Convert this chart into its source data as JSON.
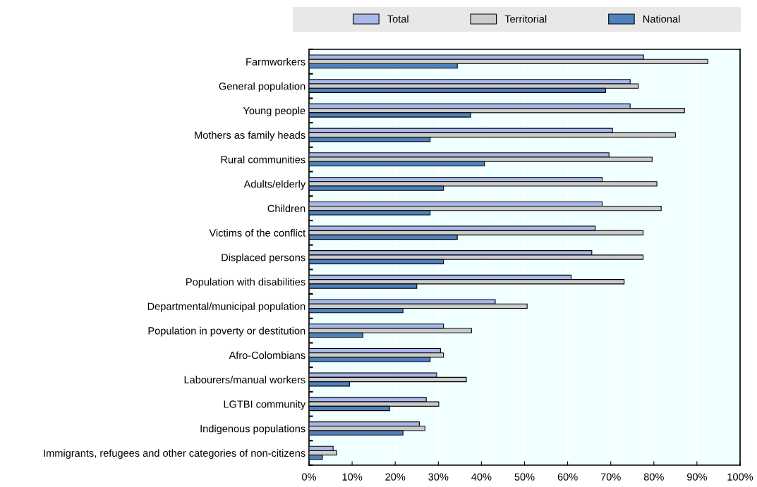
{
  "chart_data": {
    "type": "bar",
    "orientation": "horizontal",
    "categories": [
      "Farmworkers",
      "General population",
      "Young people",
      "Mothers as family heads",
      "Rural communities",
      "Adults/elderly",
      "Children",
      "Victims of the conflict",
      "Displaced persons",
      "Population with disabilities",
      "Departmental/municipal population",
      "Population in poverty or destitution",
      "Afro-Colombians",
      "Labourers/manual workers",
      "LGTBI community",
      "Indigenous populations",
      "Immigrants, refugees and other categories of non-citizens"
    ],
    "series": [
      {
        "name": "Total",
        "color": "#a8b8e8",
        "values": [
          77.6,
          74.5,
          74.5,
          70.4,
          69.6,
          68.0,
          68.0,
          66.4,
          65.6,
          60.8,
          43.2,
          31.2,
          30.5,
          29.6,
          27.2,
          25.6,
          5.6
        ]
      },
      {
        "name": "Territorial",
        "color": "#cccccc",
        "values": [
          92.5,
          76.4,
          87.1,
          85.0,
          79.6,
          80.7,
          81.7,
          77.5,
          77.5,
          73.1,
          50.6,
          37.7,
          31.2,
          36.5,
          30.1,
          26.9,
          6.4
        ]
      },
      {
        "name": "National",
        "color": "#4f81bd",
        "values": [
          34.4,
          68.8,
          37.5,
          28.1,
          40.7,
          31.2,
          28.1,
          34.4,
          31.2,
          25.0,
          21.8,
          12.5,
          28.1,
          9.4,
          18.7,
          21.8,
          3.1
        ]
      }
    ],
    "xlim": [
      0,
      100
    ],
    "xticks": [
      {
        "value": 0,
        "label": "0%"
      },
      {
        "value": 10,
        "label": "10%"
      },
      {
        "value": 20,
        "label": "20%"
      },
      {
        "value": 30,
        "label": "30%"
      },
      {
        "value": 40,
        "label": "40%"
      },
      {
        "value": 50,
        "label": "50%"
      },
      {
        "value": 60,
        "label": "60%"
      },
      {
        "value": 70,
        "label": "70%"
      },
      {
        "value": 80,
        "label": "80%"
      },
      {
        "value": 90,
        "label": "90%"
      },
      {
        "value": 100,
        "label": "100%"
      }
    ],
    "grid": "x",
    "legend": "top"
  }
}
